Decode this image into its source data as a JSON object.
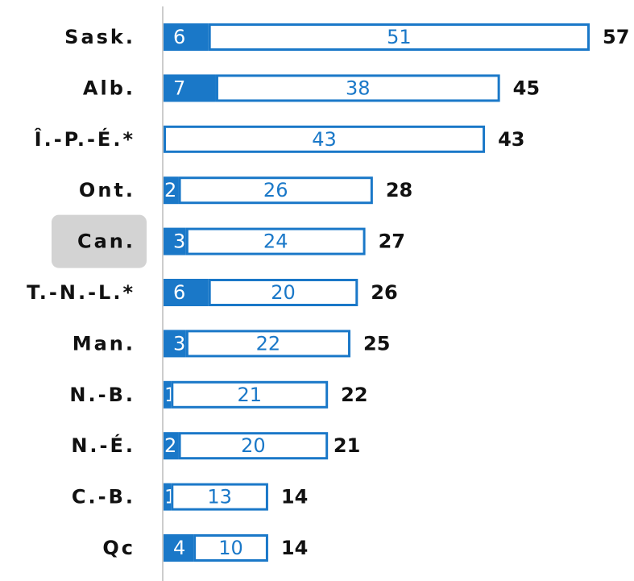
{
  "chart_data": {
    "type": "stacked-bar-horizontal",
    "categories": [
      "Sask.",
      "Alb.",
      "Î.-P.-É.*",
      "Ont.",
      "Can.",
      "T.-N.-L.*",
      "Man.",
      "N.-B.",
      "N.-É.",
      "C.-B.",
      "Qc"
    ],
    "series": [
      {
        "name": null,
        "color": "#1a78c8",
        "style": "solid",
        "values": [
          6,
          7,
          null,
          2,
          3,
          6,
          3,
          1,
          2,
          1,
          4
        ]
      },
      {
        "name": null,
        "color": "#1a78c8",
        "style": "outline",
        "values": [
          51,
          38,
          43,
          26,
          24,
          20,
          22,
          21,
          20,
          13,
          10
        ]
      }
    ],
    "totals": [
      57,
      45,
      43,
      28,
      27,
      26,
      25,
      22,
      21,
      14,
      14
    ],
    "xlim": [
      0,
      57
    ],
    "highlight": "Can."
  }
}
